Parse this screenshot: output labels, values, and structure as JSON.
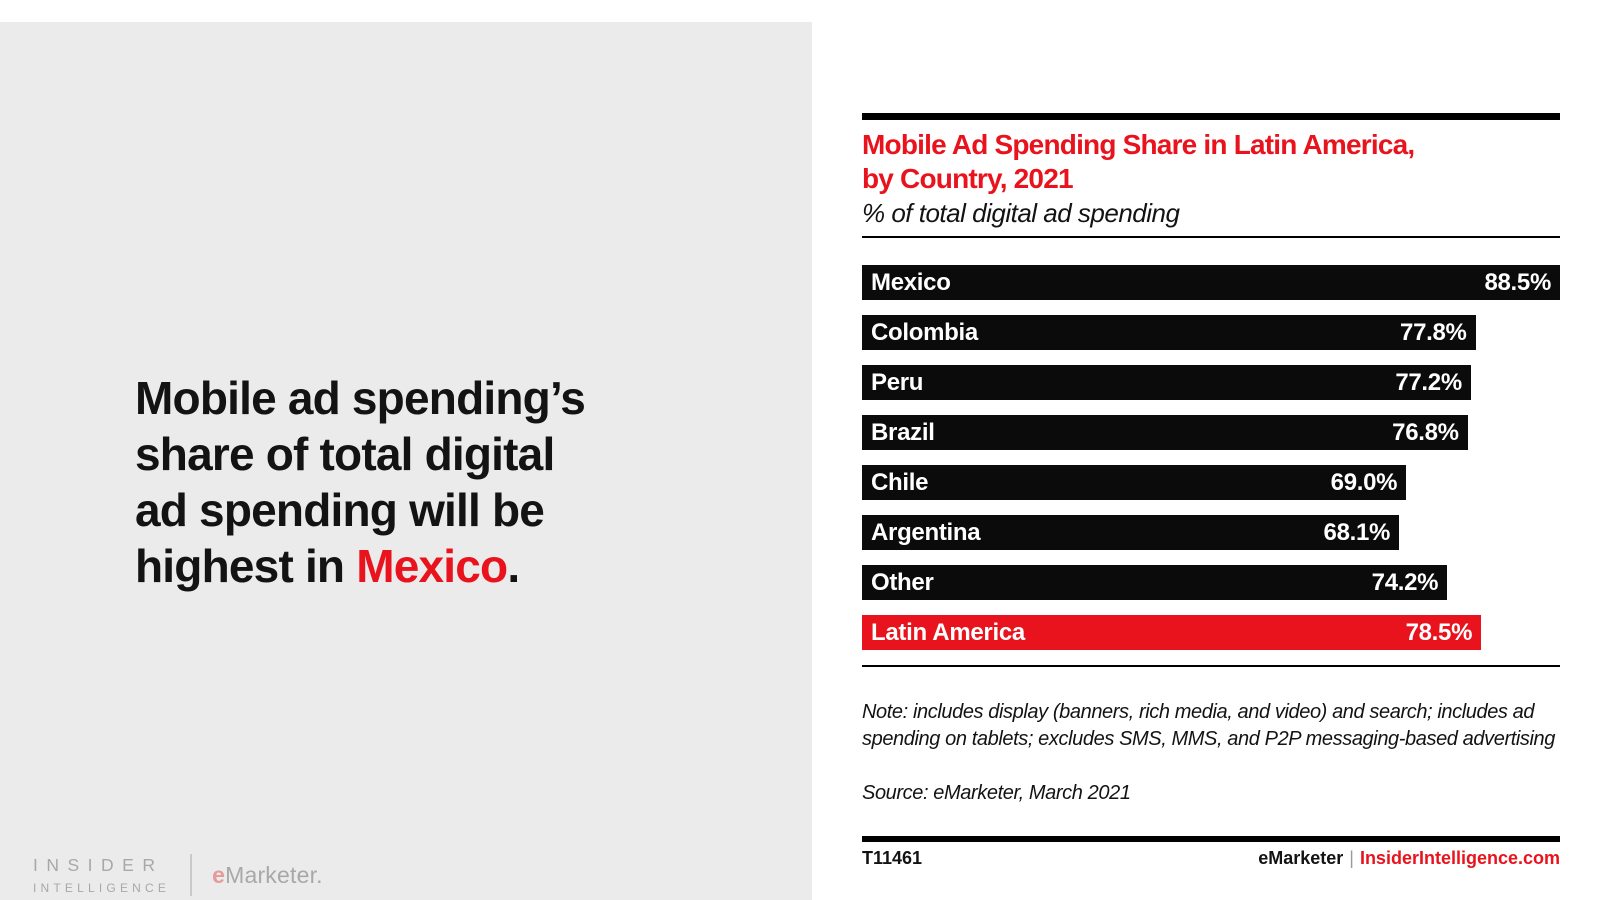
{
  "theme": {
    "red": "#e8131d",
    "panel_gray": "#ebebeb",
    "bar_black": "#0b0b0b",
    "rule_black": "#000000",
    "text_black": "#131313",
    "logo_gray": "#a8a8a8",
    "logo_pink": "#e59a9b",
    "divider_gray": "#c9c9c9",
    "footer_sep_gray": "#9b9b9b"
  },
  "left_panel": {
    "headline_pre": "Mobile ad spending’s\nshare of total digital\nad spending will be\nhighest in ",
    "headline_highlight": "Mexico",
    "headline_end": "."
  },
  "branding": {
    "insider_line1": "INSIDER",
    "insider_line2": "INTELLIGENCE",
    "emarketer_e": "e",
    "emarketer_rest": "Marketer."
  },
  "chart": {
    "title": "Mobile Ad Spending Share in Latin America,\nby Country, 2021",
    "subtitle": "% of total digital ad spending",
    "note": "Note: includes display (banners, rich media, and video) and search; includes ad\nspending on tablets; excludes SMS, MMS, and P2P messaging-based advertising",
    "source": "Source: eMarketer, March 2021",
    "chart_id": "T11461",
    "footer_brand": "eMarketer",
    "footer_separator": "|",
    "footer_site": "InsiderIntelligence.com"
  },
  "chart_data": {
    "type": "bar",
    "orientation": "horizontal",
    "title": "Mobile Ad Spending Share in Latin America, by Country, 2021",
    "ylabel": "",
    "xlabel": "% of total digital ad spending",
    "categories": [
      "Mexico",
      "Colombia",
      "Peru",
      "Brazil",
      "Chile",
      "Argentina",
      "Other",
      "Latin America"
    ],
    "values": [
      88.5,
      77.8,
      77.2,
      76.8,
      69.0,
      68.1,
      74.2,
      78.5
    ],
    "value_labels": [
      "88.5%",
      "77.8%",
      "77.2%",
      "76.8%",
      "69.0%",
      "68.1%",
      "74.2%",
      "78.5%"
    ],
    "highlight_index": 7,
    "highlight_category": "Latin America",
    "bar_color": "#0b0b0b",
    "highlight_color": "#e8131d",
    "category_label_position": "inside-left",
    "value_label_position": "inside-right",
    "xlim": [
      0,
      88.5
    ],
    "grid": false,
    "legend": false,
    "axis_visible": false
  }
}
